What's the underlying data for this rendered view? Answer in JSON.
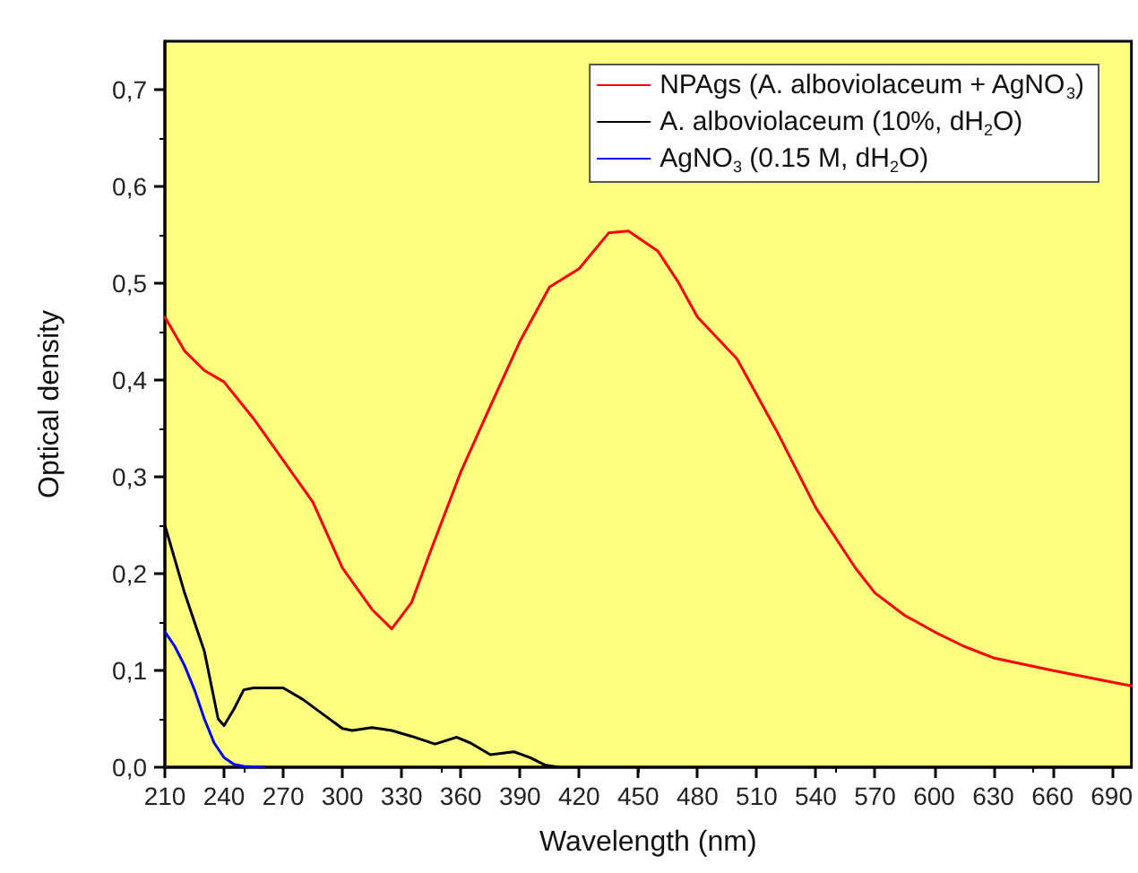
{
  "chart_data": {
    "type": "line",
    "xlabel": "Wavelength (nm)",
    "ylabel": "Optical density",
    "xlim": [
      210,
      700
    ],
    "xticks": [
      210,
      240,
      270,
      300,
      330,
      360,
      390,
      420,
      450,
      480,
      510,
      540,
      570,
      600,
      630,
      660,
      690
    ],
    "ylim": [
      0,
      0.75
    ],
    "yticks": [
      {
        "value": 0,
        "label": "0,0"
      },
      {
        "value": 0.1,
        "label": "0,1"
      },
      {
        "value": 0.2,
        "label": "0,2"
      },
      {
        "value": 0.3,
        "label": "0,3"
      },
      {
        "value": 0.4,
        "label": "0,4"
      },
      {
        "value": 0.5,
        "label": "0,5"
      },
      {
        "value": 0.6,
        "label": "0,6"
      },
      {
        "value": 0.7,
        "label": "0,7"
      }
    ],
    "grid": false,
    "legend": "top right",
    "marker": "none",
    "line_style": "solid",
    "series": [
      {
        "name": "NPAgs (A. alboviolaceum + AgNO$_{3}$)",
        "color": "#ff0000",
        "x": [
          210,
          220,
          230,
          240,
          255,
          270,
          285,
          300,
          315,
          325,
          335,
          345,
          360,
          375,
          390,
          405,
          420,
          435,
          445,
          460,
          470,
          480,
          500,
          520,
          540,
          560,
          570,
          585,
          600,
          615,
          630,
          660,
          690,
          700
        ],
        "values": [
          0.465,
          0.43,
          0.41,
          0.398,
          0.36,
          0.317,
          0.274,
          0.206,
          0.163,
          0.143,
          0.17,
          0.225,
          0.305,
          0.373,
          0.44,
          0.496,
          0.515,
          0.552,
          0.554,
          0.533,
          0.502,
          0.465,
          0.422,
          0.348,
          0.268,
          0.206,
          0.18,
          0.157,
          0.14,
          0.125,
          0.113,
          0.1,
          0.088,
          0.084
        ]
      },
      {
        "name": "A. alboviolaceum (10%, dH$_{2}$O)",
        "color": "#000000",
        "x": [
          210,
          220,
          230,
          237,
          240,
          245,
          250,
          255,
          270,
          280,
          290,
          300,
          305,
          315,
          325,
          335,
          347,
          358,
          365,
          375,
          387,
          395,
          403,
          410
        ],
        "values": [
          0.25,
          0.18,
          0.12,
          0.05,
          0.043,
          0.06,
          0.08,
          0.082,
          0.082,
          0.07,
          0.055,
          0.04,
          0.038,
          0.041,
          0.038,
          0.032,
          0.024,
          0.031,
          0.025,
          0.013,
          0.016,
          0.01,
          0.002,
          0
        ]
      },
      {
        "name": "AgNO$_{3}$ (0.15 M, dH$_{2}$O)",
        "color": "#0000ff",
        "x": [
          210,
          215,
          220,
          225,
          230,
          235,
          240,
          245,
          250,
          260
        ],
        "values": [
          0.14,
          0.125,
          0.105,
          0.08,
          0.05,
          0.025,
          0.01,
          0.003,
          0.001,
          0
        ]
      }
    ]
  }
}
